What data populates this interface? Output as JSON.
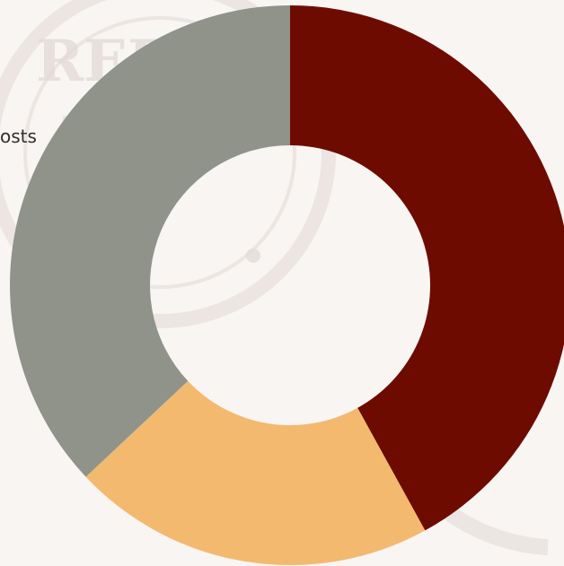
{
  "legend": {
    "partial_text": "osts"
  },
  "chart_data": {
    "type": "pie",
    "title": "",
    "donut": true,
    "inner_radius_ratio": 0.5,
    "start_angle_deg": 0,
    "values": [
      42,
      21,
      37
    ],
    "colors": [
      "#6e0b00",
      "#f2b96f",
      "#8f938a"
    ],
    "legend": "left"
  },
  "colors": {
    "background": "#f8f5f2",
    "watermark": "#e8e0dc"
  }
}
